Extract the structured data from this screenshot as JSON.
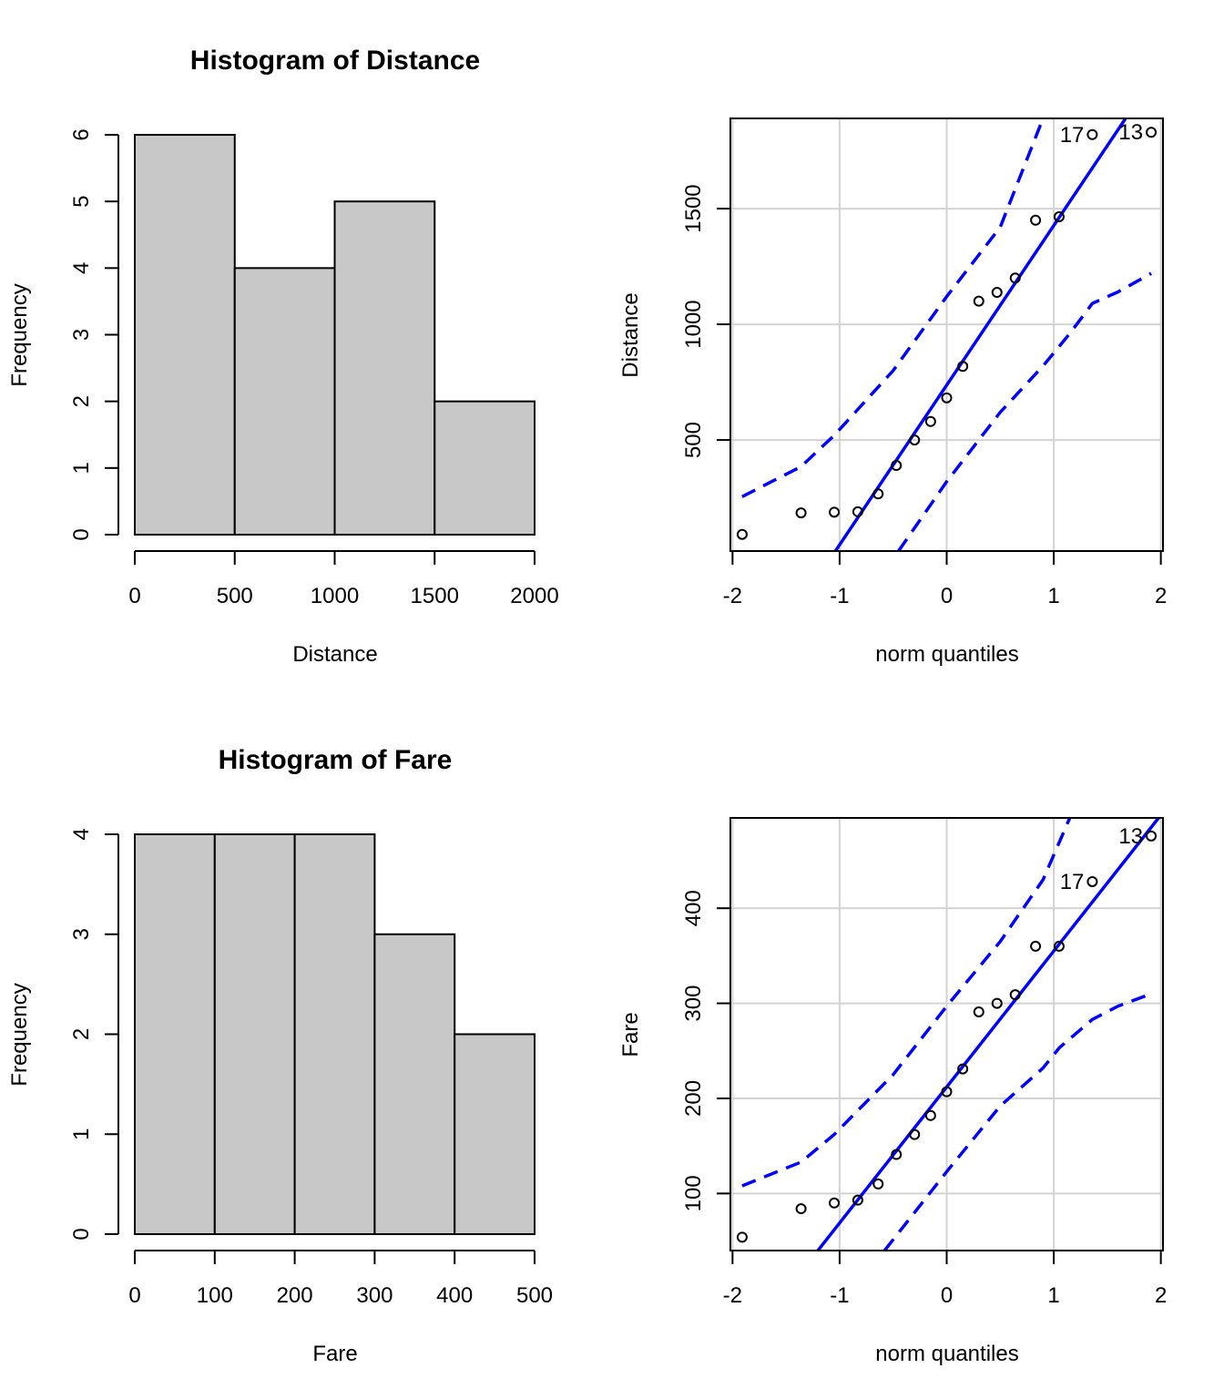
{
  "chart_data": [
    {
      "type": "bar",
      "subtype": "histogram",
      "title": "Histogram of Distance",
      "xlabel": "Distance",
      "ylabel": "Frequency",
      "bins": [
        [
          0,
          500
        ],
        [
          500,
          1000
        ],
        [
          1000,
          1500
        ],
        [
          1500,
          2000
        ]
      ],
      "values": [
        6,
        4,
        5,
        2
      ],
      "xlim": [
        0,
        2000
      ],
      "ylim": [
        0,
        6
      ],
      "xticks": [
        0,
        500,
        1000,
        1500,
        2000
      ],
      "xtick_labels": [
        "0",
        "500",
        "1000",
        "1500",
        "2000"
      ],
      "yticks": [
        0,
        1,
        2,
        3,
        4,
        5,
        6
      ],
      "ytick_labels": [
        "0",
        "1",
        "2",
        "3",
        "4",
        "5",
        "6"
      ],
      "bar_color": "#c8c8c8"
    },
    {
      "type": "scatter",
      "subtype": "qqplot",
      "title": "",
      "xlabel": "norm quantiles",
      "ylabel": "Distance",
      "xlim": [
        -2.02,
        2.02
      ],
      "ylim": [
        20,
        1890
      ],
      "xticks": [
        -2,
        -1,
        0,
        1,
        2
      ],
      "xtick_labels": [
        "-2",
        "-1",
        "0",
        "1",
        "2"
      ],
      "yticks": [
        500,
        1000,
        1500
      ],
      "ytick_labels": [
        "500",
        "1000",
        "1500"
      ],
      "grid": true,
      "points": [
        [
          -1.91,
          92
        ],
        [
          -1.36,
          185
        ],
        [
          -1.05,
          188
        ],
        [
          -0.83,
          190
        ],
        [
          -0.64,
          267
        ],
        [
          -0.47,
          390
        ],
        [
          -0.3,
          500
        ],
        [
          -0.15,
          580
        ],
        [
          0,
          682
        ],
        [
          0.15,
          818
        ],
        [
          0.3,
          1100
        ],
        [
          0.47,
          1138
        ],
        [
          0.64,
          1200
        ],
        [
          0.83,
          1450
        ],
        [
          1.05,
          1465
        ],
        [
          1.36,
          1820
        ],
        [
          1.91,
          1830
        ]
      ],
      "point_labels": [
        {
          "index": 15,
          "text": "17"
        },
        {
          "index": 16,
          "text": "13"
        }
      ],
      "reference_line": {
        "intercept": 737,
        "slope": 690
      },
      "envelope_upper": [
        [
          -1.91,
          255
        ],
        [
          -1.36,
          385
        ],
        [
          -1.05,
          520
        ],
        [
          -0.5,
          800
        ],
        [
          0,
          1120
        ],
        [
          0.5,
          1420
        ],
        [
          0.9,
          1890
        ]
      ],
      "envelope_lower": [
        [
          -0.45,
          20
        ],
        [
          0,
          320
        ],
        [
          0.5,
          620
        ],
        [
          0.9,
          820
        ],
        [
          1.15,
          960
        ],
        [
          1.36,
          1090
        ],
        [
          1.6,
          1140
        ],
        [
          1.91,
          1220
        ]
      ],
      "line_color": "#0000ff"
    },
    {
      "type": "bar",
      "subtype": "histogram",
      "title": "Histogram of Fare",
      "xlabel": "Fare",
      "ylabel": "Frequency",
      "bins": [
        [
          0,
          100
        ],
        [
          100,
          200
        ],
        [
          200,
          300
        ],
        [
          300,
          400
        ],
        [
          400,
          500
        ]
      ],
      "values": [
        4,
        4,
        4,
        3,
        2
      ],
      "xlim": [
        0,
        500
      ],
      "ylim": [
        0,
        4
      ],
      "xticks": [
        0,
        100,
        200,
        300,
        400,
        500
      ],
      "xtick_labels": [
        "0",
        "100",
        "200",
        "300",
        "400",
        "500"
      ],
      "yticks": [
        0,
        1,
        2,
        3,
        4
      ],
      "ytick_labels": [
        "0",
        "1",
        "2",
        "3",
        "4"
      ],
      "bar_color": "#c8c8c8"
    },
    {
      "type": "scatter",
      "subtype": "qqplot",
      "title": "",
      "xlabel": "norm quantiles",
      "ylabel": "Fare",
      "xlim": [
        -2.02,
        2.02
      ],
      "ylim": [
        40,
        495
      ],
      "xticks": [
        -2,
        -1,
        0,
        1,
        2
      ],
      "xtick_labels": [
        "-2",
        "-1",
        "0",
        "1",
        "2"
      ],
      "yticks": [
        100,
        200,
        300,
        400
      ],
      "ytick_labels": [
        "100",
        "200",
        "300",
        "400"
      ],
      "grid": true,
      "points": [
        [
          -1.91,
          54
        ],
        [
          -1.36,
          84
        ],
        [
          -1.05,
          90
        ],
        [
          -0.83,
          93
        ],
        [
          -0.64,
          110
        ],
        [
          -0.47,
          141
        ],
        [
          -0.3,
          162
        ],
        [
          -0.15,
          182
        ],
        [
          0,
          207
        ],
        [
          0.15,
          231
        ],
        [
          0.3,
          291
        ],
        [
          0.47,
          300
        ],
        [
          0.64,
          309
        ],
        [
          0.83,
          360
        ],
        [
          1.05,
          360
        ],
        [
          1.36,
          428
        ],
        [
          1.91,
          476
        ]
      ],
      "point_labels": [
        {
          "index": 15,
          "text": "17"
        },
        {
          "index": 16,
          "text": "13"
        }
      ],
      "reference_line": {
        "intercept": 212,
        "slope": 143
      },
      "envelope_upper": [
        [
          -1.91,
          108
        ],
        [
          -1.36,
          133
        ],
        [
          -1.05,
          162
        ],
        [
          -0.5,
          225
        ],
        [
          0,
          297
        ],
        [
          0.5,
          365
        ],
        [
          0.9,
          430
        ],
        [
          1.15,
          495
        ]
      ],
      "envelope_lower": [
        [
          -0.58,
          40
        ],
        [
          0,
          123
        ],
        [
          0.5,
          192
        ],
        [
          0.9,
          232
        ],
        [
          1.05,
          253
        ],
        [
          1.36,
          283
        ],
        [
          1.6,
          297
        ],
        [
          1.91,
          310
        ]
      ],
      "line_color": "#0000ff"
    }
  ]
}
